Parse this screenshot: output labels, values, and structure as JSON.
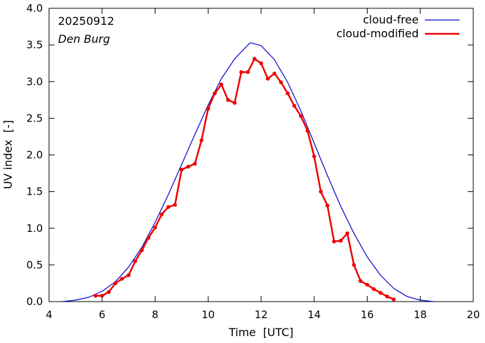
{
  "chart_data": {
    "type": "line",
    "title": "",
    "date_label": "20250912",
    "station_label": "Den Burg",
    "xlabel": "Time  [UTC]",
    "ylabel": "UV index  [-]",
    "xlim": [
      4,
      20
    ],
    "ylim": [
      0,
      4.0
    ],
    "x_ticks": [
      4,
      6,
      8,
      10,
      12,
      14,
      16,
      18,
      20
    ],
    "y_ticks": [
      0.0,
      0.5,
      1.0,
      1.5,
      2.0,
      2.5,
      3.0,
      3.5,
      4.0
    ],
    "x_tick_labels": [
      "4",
      "6",
      "8",
      "10",
      "12",
      "14",
      "16",
      "18",
      "20"
    ],
    "y_tick_labels": [
      "0.0",
      "0.5",
      "1.0",
      "1.5",
      "2.0",
      "2.5",
      "3.0",
      "3.5",
      "4.0"
    ],
    "grid": false,
    "legend_position": "top-right",
    "series": [
      {
        "name": "cloud-free",
        "color": "#0000cc",
        "marker": false,
        "x": [
          4.5,
          5.0,
          5.5,
          6.0,
          6.5,
          7.0,
          7.5,
          8.0,
          8.5,
          9.0,
          9.5,
          10.0,
          10.5,
          11.0,
          11.5,
          11.6,
          12.0,
          12.5,
          13.0,
          13.5,
          14.0,
          14.5,
          15.0,
          15.5,
          16.0,
          16.5,
          17.0,
          17.5,
          18.0,
          18.5
        ],
        "y": [
          0.0,
          0.02,
          0.06,
          0.14,
          0.27,
          0.47,
          0.74,
          1.08,
          1.46,
          1.87,
          2.28,
          2.68,
          3.04,
          3.31,
          3.5,
          3.53,
          3.49,
          3.3,
          2.99,
          2.6,
          2.16,
          1.72,
          1.3,
          0.93,
          0.61,
          0.36,
          0.18,
          0.07,
          0.02,
          0.0
        ]
      },
      {
        "name": "cloud-modified",
        "color": "#ee0000",
        "marker": true,
        "x": [
          5.75,
          6.0,
          6.25,
          6.5,
          6.75,
          7.0,
          7.25,
          7.5,
          7.75,
          8.0,
          8.25,
          8.5,
          8.75,
          9.0,
          9.25,
          9.5,
          9.75,
          10.0,
          10.25,
          10.5,
          10.75,
          11.0,
          11.25,
          11.5,
          11.75,
          12.0,
          12.25,
          12.5,
          12.75,
          13.0,
          13.25,
          13.5,
          13.75,
          14.0,
          14.25,
          14.5,
          14.75,
          15.0,
          15.25,
          15.5,
          15.75,
          16.0,
          16.25,
          16.5,
          16.75,
          17.0
        ],
        "y": [
          0.08,
          0.08,
          0.13,
          0.25,
          0.31,
          0.36,
          0.55,
          0.7,
          0.87,
          1.01,
          1.19,
          1.29,
          1.32,
          1.8,
          1.84,
          1.88,
          2.2,
          2.63,
          2.84,
          2.96,
          2.75,
          2.71,
          3.13,
          3.13,
          3.31,
          3.25,
          3.04,
          3.11,
          2.99,
          2.84,
          2.67,
          2.53,
          2.33,
          1.98,
          1.5,
          1.31,
          0.82,
          0.83,
          0.93,
          0.5,
          0.28,
          0.23,
          0.17,
          0.12,
          0.07,
          0.03
        ]
      }
    ]
  }
}
